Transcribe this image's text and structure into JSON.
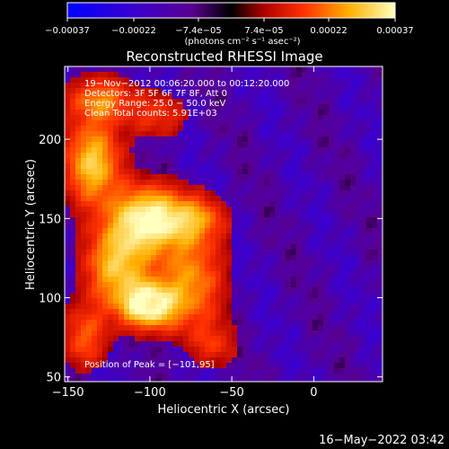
{
  "chart_data": {
    "type": "heatmap",
    "title": "Reconstructed RHESSI Image",
    "xlabel": "Heliocentric X (arcsec)",
    "ylabel": "Heliocentric Y (arcsec)",
    "xlim": [
      -152,
      42
    ],
    "ylim": [
      47,
      246
    ],
    "x_ticks": [
      -150,
      -100,
      -50,
      0
    ],
    "x_tick_labels": [
      "−150",
      "−100",
      "−50",
      "0"
    ],
    "y_ticks": [
      50,
      100,
      150,
      200
    ],
    "y_tick_labels": [
      "50",
      "100",
      "150",
      "200"
    ],
    "colorbar": {
      "min": -0.00037,
      "max": 0.00037,
      "ticks": [
        -0.00037,
        -0.00022,
        -7.4e-05,
        7.4e-05,
        0.00022,
        0.00037
      ],
      "tick_labels": [
        "−0.00037",
        "−0.00022",
        "−7.4e−05",
        "7.4e−05",
        "0.00022",
        "0.00037"
      ],
      "unit_label": "(photons cm⁻² s⁻¹ asec⁻²)"
    },
    "annotations": [
      "19−Nov−2012 00:06:20.000 to 00:12:20.000",
      "Detectors: 3F 5F 6F 7F 8F, Att 0",
      "Energy Range: 25.0 − 50.0 keV",
      "Clean    Total counts: 5.91E+03"
    ],
    "peak_label": "Position of Peak = [−101,95]",
    "peak_position": [
      -101,
      95
    ],
    "sources": [
      {
        "x": -100,
        "y": 150,
        "amp": 1.0,
        "sx": 16,
        "sy": 14
      },
      {
        "x": -101,
        "y": 95,
        "amp": 1.0,
        "sx": 12,
        "sy": 10
      },
      {
        "x": -120,
        "y": 120,
        "amp": 0.75,
        "sx": 14,
        "sy": 18
      },
      {
        "x": -135,
        "y": 185,
        "amp": 0.8,
        "sx": 12,
        "sy": 18
      },
      {
        "x": -75,
        "y": 110,
        "amp": 0.6,
        "sx": 14,
        "sy": 22
      },
      {
        "x": -70,
        "y": 150,
        "amp": 0.45,
        "sx": 12,
        "sy": 10
      },
      {
        "x": -130,
        "y": 225,
        "amp": 0.55,
        "sx": 14,
        "sy": 10
      },
      {
        "x": -140,
        "y": 75,
        "amp": 0.45,
        "sx": 10,
        "sy": 14
      },
      {
        "x": -95,
        "y": 215,
        "amp": 0.35,
        "sx": 12,
        "sy": 10
      },
      {
        "x": -60,
        "y": 70,
        "amp": 0.3,
        "sx": 10,
        "sy": 10
      }
    ]
  },
  "footer_timestamp": "16−May−2022 03:42",
  "colors": {
    "background": "#000000",
    "text": "#ffffff",
    "colormap": [
      "#0000ff",
      "#3a00c0",
      "#6a00c0",
      "#000000",
      "#c00000",
      "#ff5000",
      "#ffc000",
      "#ffffa0"
    ]
  }
}
